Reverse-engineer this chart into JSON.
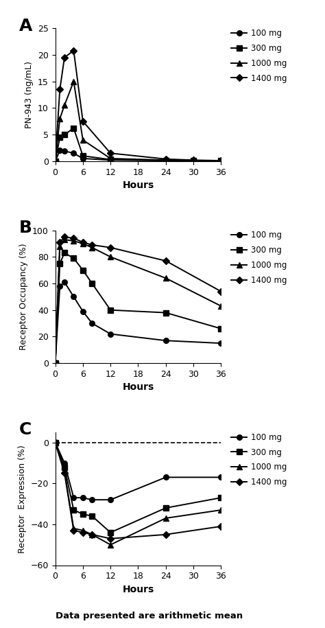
{
  "hours_A": [
    0,
    1,
    2,
    4,
    6,
    12,
    24,
    30,
    36
  ],
  "pk_100mg": [
    0.0,
    2.0,
    1.9,
    1.5,
    0.5,
    0.2,
    0.1,
    0.05,
    0.05
  ],
  "pk_300mg": [
    0.0,
    4.5,
    5.0,
    6.2,
    1.0,
    0.3,
    0.15,
    0.1,
    0.05
  ],
  "pk_1000mg": [
    0.0,
    8.0,
    10.5,
    15.0,
    4.0,
    0.5,
    0.2,
    0.1,
    0.05
  ],
  "pk_1400mg": [
    0.0,
    13.5,
    19.5,
    20.8,
    7.5,
    1.5,
    0.4,
    0.2,
    0.1
  ],
  "hours_B": [
    0,
    1,
    2,
    4,
    6,
    8,
    12,
    24,
    36
  ],
  "ro_100mg": [
    0,
    58,
    61,
    50,
    39,
    30,
    22,
    17,
    15
  ],
  "ro_300mg": [
    0,
    75,
    83,
    79,
    70,
    60,
    40,
    38,
    26
  ],
  "ro_1000mg": [
    0,
    88,
    93,
    92,
    90,
    87,
    80,
    64,
    43
  ],
  "ro_1400mg": [
    0,
    91,
    95,
    94,
    91,
    89,
    87,
    77,
    54
  ],
  "hours_C": [
    0,
    2,
    4,
    6,
    8,
    12,
    24,
    36
  ],
  "re_100mg": [
    0,
    -10,
    -27,
    -27,
    -28,
    -28,
    -17,
    -17
  ],
  "re_300mg": [
    0,
    -12,
    -33,
    -35,
    -36,
    -44,
    -32,
    -27
  ],
  "re_1000mg": [
    0,
    -14,
    -42,
    -43,
    -45,
    -50,
    -37,
    -33
  ],
  "re_1400mg": [
    0,
    -15,
    -43,
    -44,
    -45,
    -47,
    -45,
    -41
  ],
  "line_color": "#000000",
  "bg_color": "#ffffff",
  "legend_labels": [
    "100 mg",
    "300 mg",
    "1000 mg",
    "1400 mg"
  ],
  "markers": [
    "o",
    "s",
    "^",
    "D"
  ],
  "panel_labels": [
    "A",
    "B",
    "C"
  ],
  "ylabel_A": "PN-943 (ng/mL)",
  "ylabel_B": "Receptor Occupancy (%)",
  "ylabel_C": "Receptor  Expression (%)",
  "xlabel": "Hours",
  "ylim_A": [
    0,
    25
  ],
  "yticks_A": [
    0,
    5,
    10,
    15,
    20,
    25
  ],
  "ylim_B": [
    0,
    100
  ],
  "yticks_B": [
    0,
    20,
    40,
    60,
    80,
    100
  ],
  "ylim_C": [
    -60,
    5
  ],
  "yticks_C": [
    -60,
    -40,
    -20,
    0
  ],
  "xticks": [
    0,
    6,
    12,
    18,
    24,
    30,
    36
  ],
  "footer_text": "Data presented are arithmetic mean"
}
